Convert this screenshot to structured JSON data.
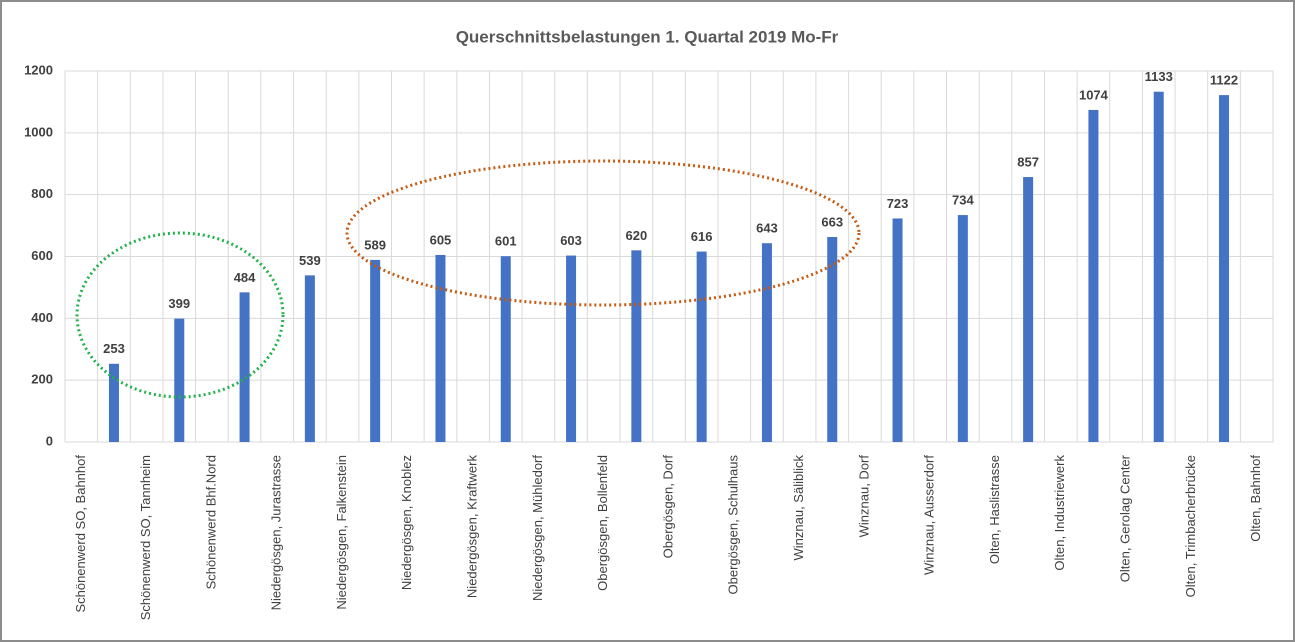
{
  "chart_data": {
    "type": "bar",
    "title": "Querschnittsbelastungen 1. Quartal 2019 Mo-Fr",
    "categories": [
      "Schönenwerd SO, Bahnhof",
      null,
      "Schönenwerd SO, Tannheim",
      null,
      "Schönenwerd Bhf.Nord",
      null,
      "Niedergösgen, Jurastrasse",
      null,
      "Niedergösgen, Falkenstein",
      null,
      "Niedergösgen, Knoblez",
      null,
      "Niedergösgen, Kraftwerk",
      null,
      "Niedergösgen, Mühledorf",
      null,
      "Obergösgen, Bollenfeld",
      null,
      "Obergösgen, Dorf",
      null,
      "Obergösgen, Schulhaus",
      null,
      "Winznau, Säliblick",
      null,
      "Winznau, Dorf",
      null,
      "Winznau, Ausserdorf",
      null,
      "Olten, Haslistrasse",
      null,
      "Olten, Industriewerk",
      null,
      "Olten, Gerolag Center",
      null,
      "Olten, Trimbacherbrücke",
      null,
      "Olten, Bahnhof"
    ],
    "values": [
      null,
      253,
      null,
      399,
      null,
      484,
      null,
      539,
      null,
      589,
      null,
      605,
      null,
      601,
      null,
      603,
      null,
      620,
      null,
      616,
      null,
      643,
      null,
      663,
      null,
      723,
      null,
      734,
      null,
      857,
      null,
      1074,
      null,
      1133,
      null,
      1122,
      null
    ],
    "color": "#4472c4",
    "ylim": [
      0,
      1200
    ],
    "yticks": [
      0,
      200,
      400,
      600,
      800,
      1000,
      1200
    ],
    "grid": true
  }
}
